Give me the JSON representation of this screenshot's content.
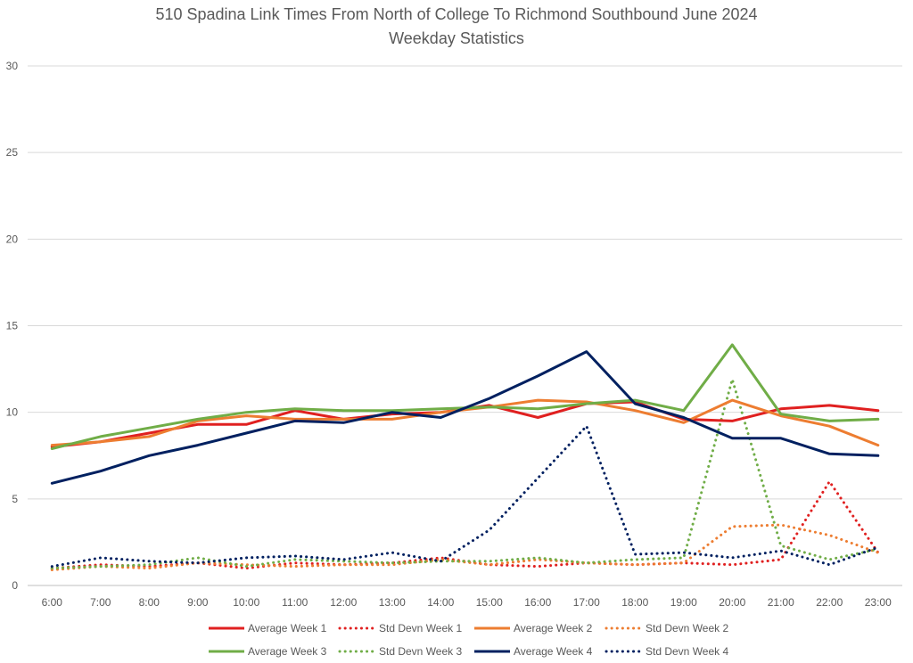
{
  "chart_data": {
    "type": "line",
    "title": "510 Spadina Link Times From North of College To Richmond Southbound June 2024",
    "subtitle": "Weekday Statistics",
    "xlabel": "",
    "ylabel": "",
    "ylim": [
      0,
      30
    ],
    "yticks": [
      0,
      5,
      10,
      15,
      20,
      25,
      30
    ],
    "grid": true,
    "legend_position": "bottom",
    "categories": [
      "6:00",
      "7:00",
      "8:00",
      "9:00",
      "10:00",
      "11:00",
      "12:00",
      "13:00",
      "14:00",
      "15:00",
      "16:00",
      "17:00",
      "18:00",
      "19:00",
      "20:00",
      "21:00",
      "22:00",
      "23:00"
    ],
    "series": [
      {
        "name": "Average Week 1",
        "color": "#e02020",
        "dash": "solid",
        "values": [
          8.0,
          8.3,
          8.8,
          9.3,
          9.3,
          10.1,
          9.6,
          9.9,
          10.0,
          10.4,
          9.7,
          10.5,
          10.6,
          9.6,
          9.5,
          10.2,
          10.4,
          10.1
        ]
      },
      {
        "name": "Std Devn Week 1",
        "color": "#e02020",
        "dash": "dotted",
        "values": [
          1.0,
          1.2,
          1.1,
          1.3,
          1.0,
          1.3,
          1.2,
          1.3,
          1.6,
          1.2,
          1.1,
          1.3,
          1.2,
          1.3,
          1.2,
          1.5,
          6.0,
          1.9
        ]
      },
      {
        "name": "Average Week 2",
        "color": "#ed7d31",
        "dash": "solid",
        "values": [
          8.1,
          8.3,
          8.6,
          9.5,
          9.8,
          9.6,
          9.6,
          9.6,
          10.0,
          10.3,
          10.7,
          10.6,
          10.1,
          9.4,
          10.7,
          9.8,
          9.2,
          8.1
        ]
      },
      {
        "name": "Std Devn Week 2",
        "color": "#ed7d31",
        "dash": "dotted",
        "values": [
          0.9,
          1.1,
          1.0,
          1.3,
          1.2,
          1.1,
          1.2,
          1.2,
          1.5,
          1.2,
          1.5,
          1.3,
          1.2,
          1.3,
          3.4,
          3.5,
          2.9,
          1.9
        ]
      },
      {
        "name": "Average Week 3",
        "color": "#70ad47",
        "dash": "solid",
        "values": [
          7.9,
          8.6,
          9.1,
          9.6,
          10.0,
          10.2,
          10.1,
          10.1,
          10.2,
          10.3,
          10.2,
          10.5,
          10.7,
          10.1,
          13.9,
          9.9,
          9.5,
          9.6
        ]
      },
      {
        "name": "Std Devn Week 3",
        "color": "#70ad47",
        "dash": "dotted",
        "values": [
          1.0,
          1.1,
          1.2,
          1.6,
          1.1,
          1.5,
          1.4,
          1.3,
          1.4,
          1.4,
          1.6,
          1.3,
          1.5,
          1.6,
          11.9,
          2.3,
          1.5,
          2.1
        ]
      },
      {
        "name": "Average Week 4",
        "color": "#002060",
        "dash": "solid",
        "values": [
          5.9,
          6.6,
          7.5,
          8.1,
          8.8,
          9.5,
          9.4,
          10.0,
          9.7,
          10.8,
          12.1,
          13.5,
          10.5,
          9.7,
          8.5,
          8.5,
          7.6,
          7.5
        ]
      },
      {
        "name": "Std Devn Week 4",
        "color": "#002060",
        "dash": "dotted",
        "values": [
          1.1,
          1.6,
          1.4,
          1.3,
          1.6,
          1.7,
          1.5,
          1.9,
          1.4,
          3.2,
          6.2,
          9.2,
          1.8,
          1.9,
          1.6,
          2.0,
          1.2,
          2.2
        ]
      }
    ]
  }
}
